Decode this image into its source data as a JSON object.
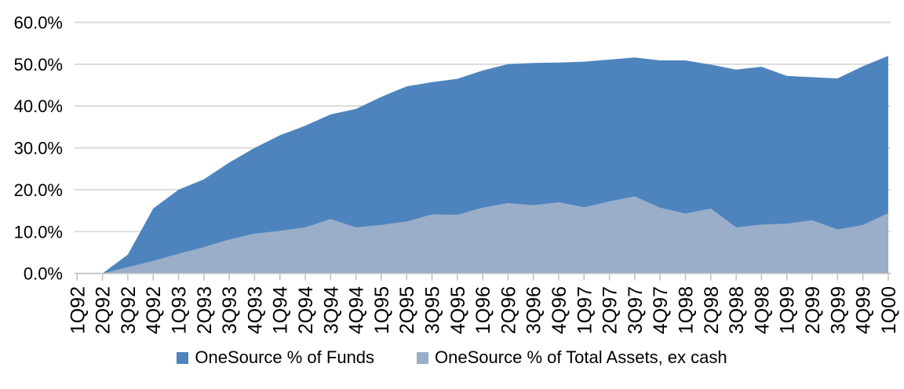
{
  "chart_data": {
    "type": "area",
    "title": "",
    "categories": [
      "1Q92",
      "2Q92",
      "3Q92",
      "4Q92",
      "1Q93",
      "2Q93",
      "3Q93",
      "4Q93",
      "1Q94",
      "2Q94",
      "3Q94",
      "4Q94",
      "1Q95",
      "2Q95",
      "3Q95",
      "4Q95",
      "1Q96",
      "2Q96",
      "3Q96",
      "4Q96",
      "1Q97",
      "2Q97",
      "3Q97",
      "4Q97",
      "1Q98",
      "2Q98",
      "3Q98",
      "4Q98",
      "1Q99",
      "2Q99",
      "3Q99",
      "4Q99",
      "1Q00"
    ],
    "series": [
      {
        "name": "OneSource % of Funds",
        "color": "#4E84BE",
        "values": [
          0.0,
          0.0,
          4.5,
          15.5,
          20.0,
          22.5,
          26.5,
          30.0,
          33.0,
          35.3,
          38.0,
          39.3,
          42.2,
          44.7,
          45.7,
          46.5,
          48.5,
          50.0,
          50.3,
          50.4,
          50.6,
          51.1,
          51.6,
          50.9,
          50.9,
          49.9,
          48.7,
          49.4,
          47.2,
          46.9,
          46.6,
          49.5,
          52.0
        ]
      },
      {
        "name": "OneSource % of Total Assets, ex cash",
        "color": "#9AAEC9",
        "values": [
          0.0,
          0.0,
          1.5,
          3.0,
          4.7,
          6.3,
          8.1,
          9.5,
          10.2,
          11.0,
          13.0,
          11.0,
          11.6,
          12.4,
          14.1,
          14.0,
          15.7,
          16.8,
          16.3,
          17.0,
          15.8,
          17.2,
          18.4,
          15.7,
          14.3,
          15.5,
          11.0,
          11.7,
          11.9,
          12.7,
          10.5,
          11.6,
          14.4
        ]
      }
    ],
    "ylim": [
      0,
      60
    ],
    "y_tick_labels": [
      "0.0%",
      "10.0%",
      "20.0%",
      "30.0%",
      "40.0%",
      "50.0%",
      "60.0%"
    ],
    "grid": "horizontal-only",
    "legend_position": "bottom",
    "axis_colors": {
      "gridline": "#D9D9D9",
      "axis_line": "#BFBFBF",
      "tick": "#BFBFBF",
      "label": "#000000"
    }
  }
}
